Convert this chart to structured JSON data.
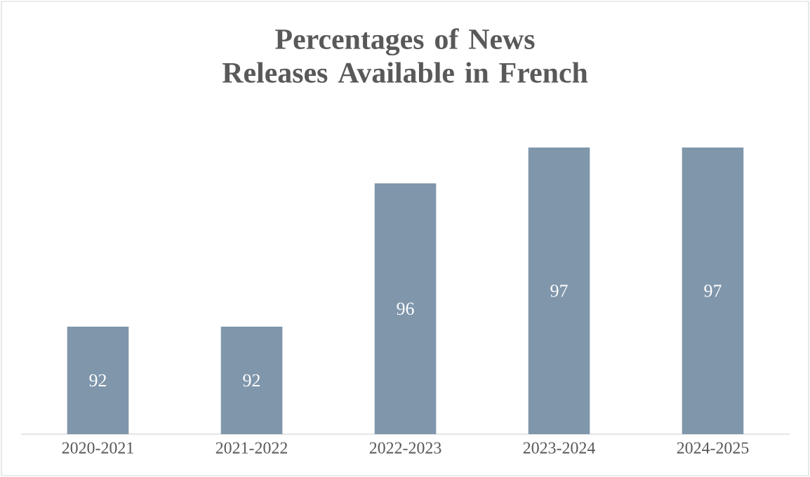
{
  "chart_data": {
    "type": "bar",
    "title": "Percentages of News Releases Available in French",
    "categories": [
      "2020-2021",
      "2021-2022",
      "2022-2023",
      "2023-2024",
      "2024-2025"
    ],
    "values": [
      92,
      92,
      96,
      97,
      97
    ],
    "color": "#7f96ab",
    "ylim": [
      89,
      97
    ],
    "data_labels": true,
    "tick_labels": "x"
  }
}
